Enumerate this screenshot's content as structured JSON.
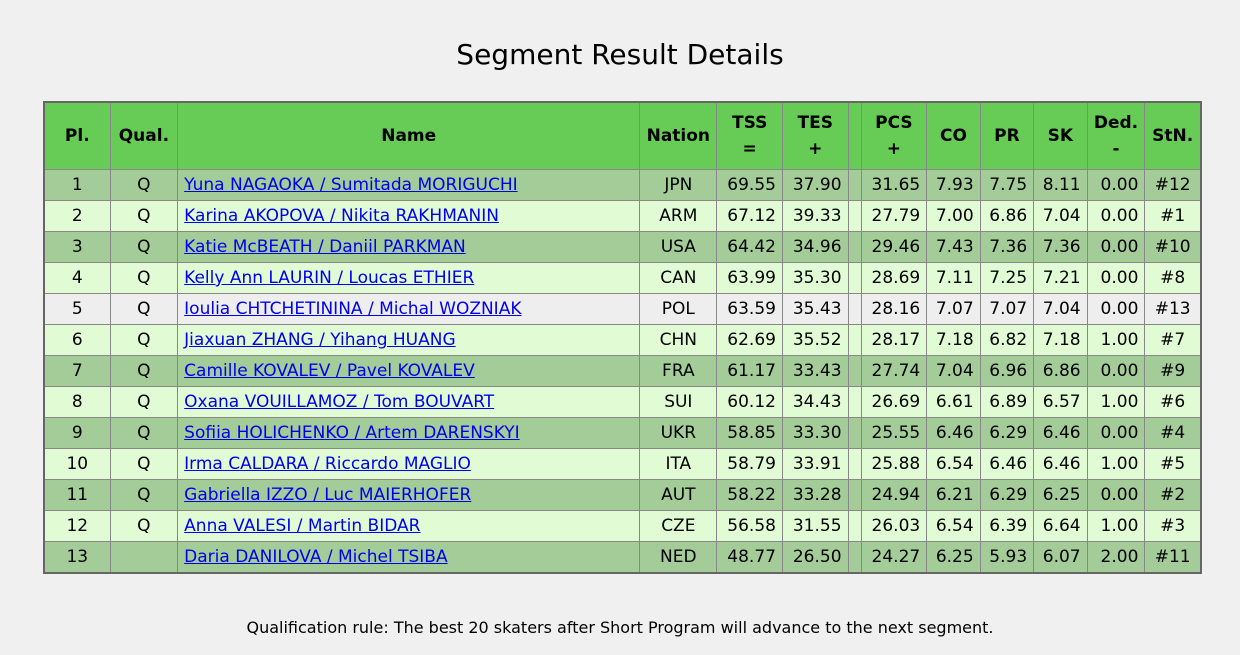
{
  "page": {
    "title": "Segment Result Details",
    "footer_note": "Qualification rule: The best 20 skaters after Short Program will advance to the next segment."
  },
  "table": {
    "headers": {
      "pl": "Pl.",
      "qual": "Qual.",
      "name": "Name",
      "nation": "Nation",
      "tss_top": "TSS",
      "tss_bottom": "=",
      "tes_top": "TES",
      "tes_bottom": "+",
      "pcs_top": "PCS",
      "pcs_bottom": "+",
      "co": "CO",
      "pr": "PR",
      "sk": "SK",
      "ded_top": "Ded.",
      "ded_bottom": "-",
      "stn": "StN."
    },
    "rows": [
      {
        "pl": "1",
        "qual": "Q",
        "name": "Yuna NAGAOKA / Sumitada MORIGUCHI",
        "nation": "JPN",
        "tss": "69.55",
        "tes": "37.90",
        "pcs": "31.65",
        "co": "7.93",
        "pr": "7.75",
        "sk": "8.11",
        "ded": "0.00",
        "stn": "#12"
      },
      {
        "pl": "2",
        "qual": "Q",
        "name": "Karina AKOPOVA / Nikita RAKHMANIN",
        "nation": "ARM",
        "tss": "67.12",
        "tes": "39.33",
        "pcs": "27.79",
        "co": "7.00",
        "pr": "6.86",
        "sk": "7.04",
        "ded": "0.00",
        "stn": "#1"
      },
      {
        "pl": "3",
        "qual": "Q",
        "name": "Katie McBEATH / Daniil PARKMAN",
        "nation": "USA",
        "tss": "64.42",
        "tes": "34.96",
        "pcs": "29.46",
        "co": "7.43",
        "pr": "7.36",
        "sk": "7.36",
        "ded": "0.00",
        "stn": "#10"
      },
      {
        "pl": "4",
        "qual": "Q",
        "name": "Kelly Ann LAURIN / Loucas ETHIER",
        "nation": "CAN",
        "tss": "63.99",
        "tes": "35.30",
        "pcs": "28.69",
        "co": "7.11",
        "pr": "7.25",
        "sk": "7.21",
        "ded": "0.00",
        "stn": "#8"
      },
      {
        "pl": "5",
        "qual": "Q",
        "name": "Ioulia CHTCHETININA / Michal WOZNIAK",
        "nation": "POL",
        "tss": "63.59",
        "tes": "35.43",
        "pcs": "28.16",
        "co": "7.07",
        "pr": "7.07",
        "sk": "7.04",
        "ded": "0.00",
        "stn": "#13"
      },
      {
        "pl": "6",
        "qual": "Q",
        "name": "Jiaxuan ZHANG / Yihang HUANG",
        "nation": "CHN",
        "tss": "62.69",
        "tes": "35.52",
        "pcs": "28.17",
        "co": "7.18",
        "pr": "6.82",
        "sk": "7.18",
        "ded": "1.00",
        "stn": "#7"
      },
      {
        "pl": "7",
        "qual": "Q",
        "name": "Camille KOVALEV / Pavel KOVALEV",
        "nation": "FRA",
        "tss": "61.17",
        "tes": "33.43",
        "pcs": "27.74",
        "co": "7.04",
        "pr": "6.96",
        "sk": "6.86",
        "ded": "0.00",
        "stn": "#9"
      },
      {
        "pl": "8",
        "qual": "Q",
        "name": "Oxana VOUILLAMOZ / Tom BOUVART",
        "nation": "SUI",
        "tss": "60.12",
        "tes": "34.43",
        "pcs": "26.69",
        "co": "6.61",
        "pr": "6.89",
        "sk": "6.57",
        "ded": "1.00",
        "stn": "#6"
      },
      {
        "pl": "9",
        "qual": "Q",
        "name": "Sofiia HOLICHENKO / Artem DARENSKYI",
        "nation": "UKR",
        "tss": "58.85",
        "tes": "33.30",
        "pcs": "25.55",
        "co": "6.46",
        "pr": "6.29",
        "sk": "6.46",
        "ded": "0.00",
        "stn": "#4"
      },
      {
        "pl": "10",
        "qual": "Q",
        "name": "Irma CALDARA / Riccardo MAGLIO",
        "nation": "ITA",
        "tss": "58.79",
        "tes": "33.91",
        "pcs": "25.88",
        "co": "6.54",
        "pr": "6.46",
        "sk": "6.46",
        "ded": "1.00",
        "stn": "#5"
      },
      {
        "pl": "11",
        "qual": "Q",
        "name": "Gabriella IZZO / Luc MAIERHOFER",
        "nation": "AUT",
        "tss": "58.22",
        "tes": "33.28",
        "pcs": "24.94",
        "co": "6.21",
        "pr": "6.29",
        "sk": "6.25",
        "ded": "0.00",
        "stn": "#2"
      },
      {
        "pl": "12",
        "qual": "Q",
        "name": "Anna VALESI / Martin BIDAR",
        "nation": "CZE",
        "tss": "56.58",
        "tes": "31.55",
        "pcs": "26.03",
        "co": "6.54",
        "pr": "6.39",
        "sk": "6.64",
        "ded": "1.00",
        "stn": "#3"
      },
      {
        "pl": "13",
        "qual": "",
        "name": "Daria DANILOVA / Michel TSIBA",
        "nation": "NED",
        "tss": "48.77",
        "tes": "26.50",
        "pcs": "24.27",
        "co": "6.25",
        "pr": "5.93",
        "sk": "6.07",
        "ded": "2.00",
        "stn": "#11"
      }
    ]
  },
  "colors": {
    "header_bg": "#66cc55",
    "row_dark": "#a3cc98",
    "row_light": "#e1fcd5",
    "row_plain": "#eeeeee",
    "link": "#0000ee"
  }
}
